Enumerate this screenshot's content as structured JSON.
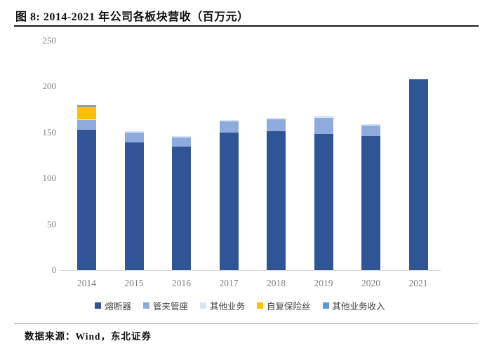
{
  "title": "图 8: 2014-2021 年公司各板块营收（百万元）",
  "source_note": "数据来源：Wind，东北证券",
  "chart_data": {
    "type": "bar",
    "stacked": true,
    "title": "2014-2021 年公司各板块营收（百万元）",
    "xlabel": "",
    "ylabel": "",
    "ylim": [
      0,
      250
    ],
    "yticks": [
      0,
      50,
      100,
      150,
      200,
      250
    ],
    "grid": false,
    "legend_position": "bottom",
    "categories": [
      "2014",
      "2015",
      "2016",
      "2017",
      "2018",
      "2019",
      "2020",
      "2021"
    ],
    "series": [
      {
        "name": "熔断器",
        "color": "#2F5597",
        "values": [
          153,
          139,
          134.5,
          150,
          151,
          148,
          146,
          208
        ]
      },
      {
        "name": "管夹管座",
        "color": "#8FAADC",
        "values": [
          11,
          10.5,
          10,
          12,
          13.5,
          18,
          11.5,
          0
        ]
      },
      {
        "name": "其他业务",
        "color": "#DAE3F3",
        "values": [
          0.5,
          1.5,
          1.5,
          1.5,
          1.5,
          2,
          1.5,
          0
        ]
      },
      {
        "name": "自复保险丝",
        "color": "#FFC000",
        "values": [
          14,
          0,
          0,
          0,
          0,
          0,
          0,
          0
        ]
      },
      {
        "name": "其他业务收入",
        "color": "#5B9BD5",
        "values": [
          1.5,
          0,
          0,
          0,
          0,
          0,
          0,
          0
        ]
      }
    ],
    "totals": [
      180,
      151,
      146,
      163.5,
      166,
      168,
      159,
      208
    ],
    "axis_color": "#d9d9d9",
    "tick_label_color": "#808080"
  }
}
